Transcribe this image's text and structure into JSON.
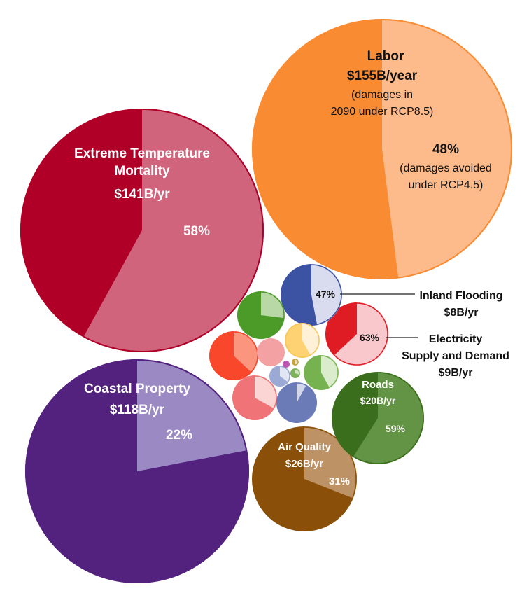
{
  "chart_data": {
    "type": "pie",
    "title": "",
    "bubbles": [
      {
        "id": "labor",
        "name": "Labor",
        "value_label": "$155B/year",
        "notes": [
          "(damages in",
          "2090 under RCP8.5)"
        ],
        "avoided_label": "48%",
        "avoided_notes": [
          "(damages avoided",
          "under RCP4.5)"
        ],
        "avoided_fraction": 0.48,
        "color_dark": "#f98b33",
        "color_light": "#fdba8a",
        "stroke": "#f98b33"
      },
      {
        "id": "mortality",
        "name": [
          "Extreme Temperature",
          "Mortality"
        ],
        "value_label": "$141B/yr",
        "avoided_label": "58%",
        "avoided_fraction": 0.58,
        "color_dark": "#b00028",
        "color_light": "#d0647c",
        "stroke": "#b00028"
      },
      {
        "id": "coastal",
        "name": "Coastal Property",
        "value_label": "$118B/yr",
        "avoided_label": "22%",
        "avoided_fraction": 0.22,
        "color_dark": "#53227f",
        "color_light": "#9b89c4",
        "stroke": "#53227f"
      },
      {
        "id": "air_quality",
        "name": "Air Quality",
        "value_label": "$26B/yr",
        "avoided_label": "31%",
        "avoided_fraction": 0.31,
        "color_dark": "#8a5009",
        "color_light": "#bd9265",
        "stroke": "#8a5009"
      },
      {
        "id": "roads",
        "name": "Roads",
        "value_label": "$20B/yr",
        "avoided_label": "59%",
        "avoided_fraction": 0.59,
        "color_dark": "#3b6e1c",
        "color_light": "#639445",
        "stroke": "#3b6e1c"
      },
      {
        "id": "electricity",
        "name": [
          "Electricity",
          "Supply and Demand"
        ],
        "value_label": "$9B/yr",
        "avoided_label": "63%",
        "avoided_fraction": 0.63,
        "color_dark": "#df1c24",
        "color_light": "#f8c8cc",
        "stroke": "#df1c24"
      },
      {
        "id": "inland_flooding",
        "name": "Inland Flooding",
        "value_label": "$8B/yr",
        "avoided_label": "47%",
        "avoided_fraction": 0.47,
        "color_dark": "#3c53a4",
        "color_light": "#d9dcee",
        "stroke": "#3c53a4"
      },
      {
        "id": "small_green",
        "avoided_fraction": 0.27,
        "color_dark": "#4c9a28",
        "color_light": "#b8d9a5",
        "stroke": "#4c9a28"
      },
      {
        "id": "small_yellow",
        "avoided_fraction": 0.42,
        "color_dark": "#fed173",
        "color_light": "#fff1d7",
        "stroke": "#f6c65a"
      },
      {
        "id": "small_redorange",
        "avoided_fraction": 0.37,
        "color_dark": "#f8472b",
        "color_light": "#fb957e",
        "stroke": "#f8472b"
      },
      {
        "id": "small_pink",
        "avoided_fraction": 0.0,
        "color_dark": "#f4a1a3",
        "color_light": "#f4a1a3",
        "stroke": "#f4a1a3"
      },
      {
        "id": "small_salmon",
        "avoided_fraction": 0.33,
        "color_dark": "#ef7377",
        "color_light": "#fbd5d3",
        "stroke": "#ef7377"
      },
      {
        "id": "small_blue",
        "avoided_fraction": 0.08,
        "color_dark": "#6a7bb8",
        "color_light": "#d3d7ec",
        "stroke": "#6a7bb8"
      },
      {
        "id": "small_lightgreen",
        "avoided_fraction": 0.42,
        "color_dark": "#76b350",
        "color_light": "#dbeccd",
        "stroke": "#76b350"
      },
      {
        "id": "tiny_slate",
        "avoided_fraction": 0.35,
        "color_dark": "#9aaad4",
        "color_light": "#e2e6f3",
        "stroke": "#9aaad4"
      },
      {
        "id": "tiny_green",
        "avoided_fraction": 0.3,
        "color_dark": "#7fb25c",
        "color_light": "#cfe4bf",
        "stroke": "#7fb25c"
      },
      {
        "id": "tiny_olive",
        "avoided_fraction": 0.5,
        "color_dark": "#c9a13d",
        "color_light": "#efe1b8",
        "stroke": "#c9a13d"
      },
      {
        "id": "tiny_magenta",
        "avoided_fraction": 0.0,
        "color_dark": "#c157b4",
        "color_light": "#c157b4",
        "stroke": "#c157b4"
      }
    ]
  }
}
